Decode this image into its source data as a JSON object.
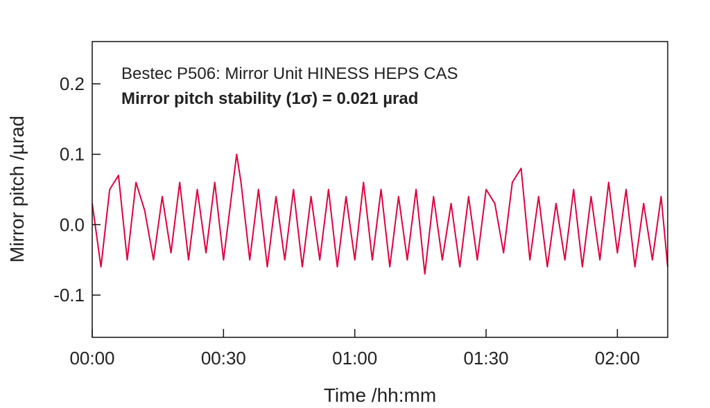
{
  "chart_data": {
    "type": "line",
    "title": "",
    "xlabel": "Time /hh:mm",
    "ylabel": "Mirror pitch /µrad",
    "annotations": [
      "Bestec P506: Mirror Unit HINESS HEPS CAS",
      "Mirror pitch stability (1σ) = 0.021 µrad"
    ],
    "x_unit": "minutes",
    "xlim": [
      0,
      131.5
    ],
    "ylim": [
      -0.16,
      0.26
    ],
    "x_ticks": [
      0,
      30,
      60,
      90,
      120
    ],
    "x_tick_labels": [
      "00:00",
      "00:30",
      "01:00",
      "01:30",
      "02:00"
    ],
    "y_ticks": [
      -0.1,
      0.0,
      0.1,
      0.2
    ],
    "y_tick_labels": [
      "-0.1",
      "0.0",
      "0.1",
      "0.2"
    ],
    "grid": false,
    "legend": "none",
    "line_color": "#e0003c",
    "series": [
      {
        "x": [
          0,
          2,
          4,
          6,
          8,
          10,
          12,
          14,
          16,
          18,
          20,
          22,
          24,
          26,
          28,
          30,
          32,
          33,
          34,
          36,
          38,
          40,
          42,
          44,
          46,
          48,
          50,
          52,
          54,
          56,
          58,
          60,
          62,
          64,
          66,
          68,
          70,
          72,
          74,
          76,
          78,
          80,
          82,
          84,
          86,
          88,
          90,
          92,
          94,
          96,
          98,
          100,
          102,
          104,
          106,
          108,
          110,
          112,
          114,
          116,
          118,
          120,
          122,
          124,
          126,
          128,
          130,
          131.5
        ],
        "values": [
          0.03,
          -0.06,
          0.05,
          0.07,
          -0.05,
          0.06,
          0.02,
          -0.05,
          0.04,
          -0.04,
          0.06,
          -0.05,
          0.05,
          -0.04,
          0.06,
          -0.05,
          0.05,
          0.1,
          0.06,
          -0.05,
          0.05,
          -0.06,
          0.04,
          -0.05,
          0.05,
          -0.06,
          0.04,
          -0.05,
          0.05,
          -0.06,
          0.04,
          -0.05,
          0.06,
          -0.05,
          0.05,
          -0.06,
          0.04,
          -0.05,
          0.05,
          -0.07,
          0.04,
          -0.05,
          0.03,
          -0.06,
          0.04,
          -0.05,
          0.05,
          0.03,
          -0.04,
          0.06,
          0.08,
          -0.05,
          0.04,
          -0.06,
          0.03,
          -0.05,
          0.05,
          -0.06,
          0.04,
          -0.05,
          0.06,
          -0.04,
          0.05,
          -0.06,
          0.03,
          -0.05,
          0.04,
          -0.06
        ]
      }
    ]
  }
}
